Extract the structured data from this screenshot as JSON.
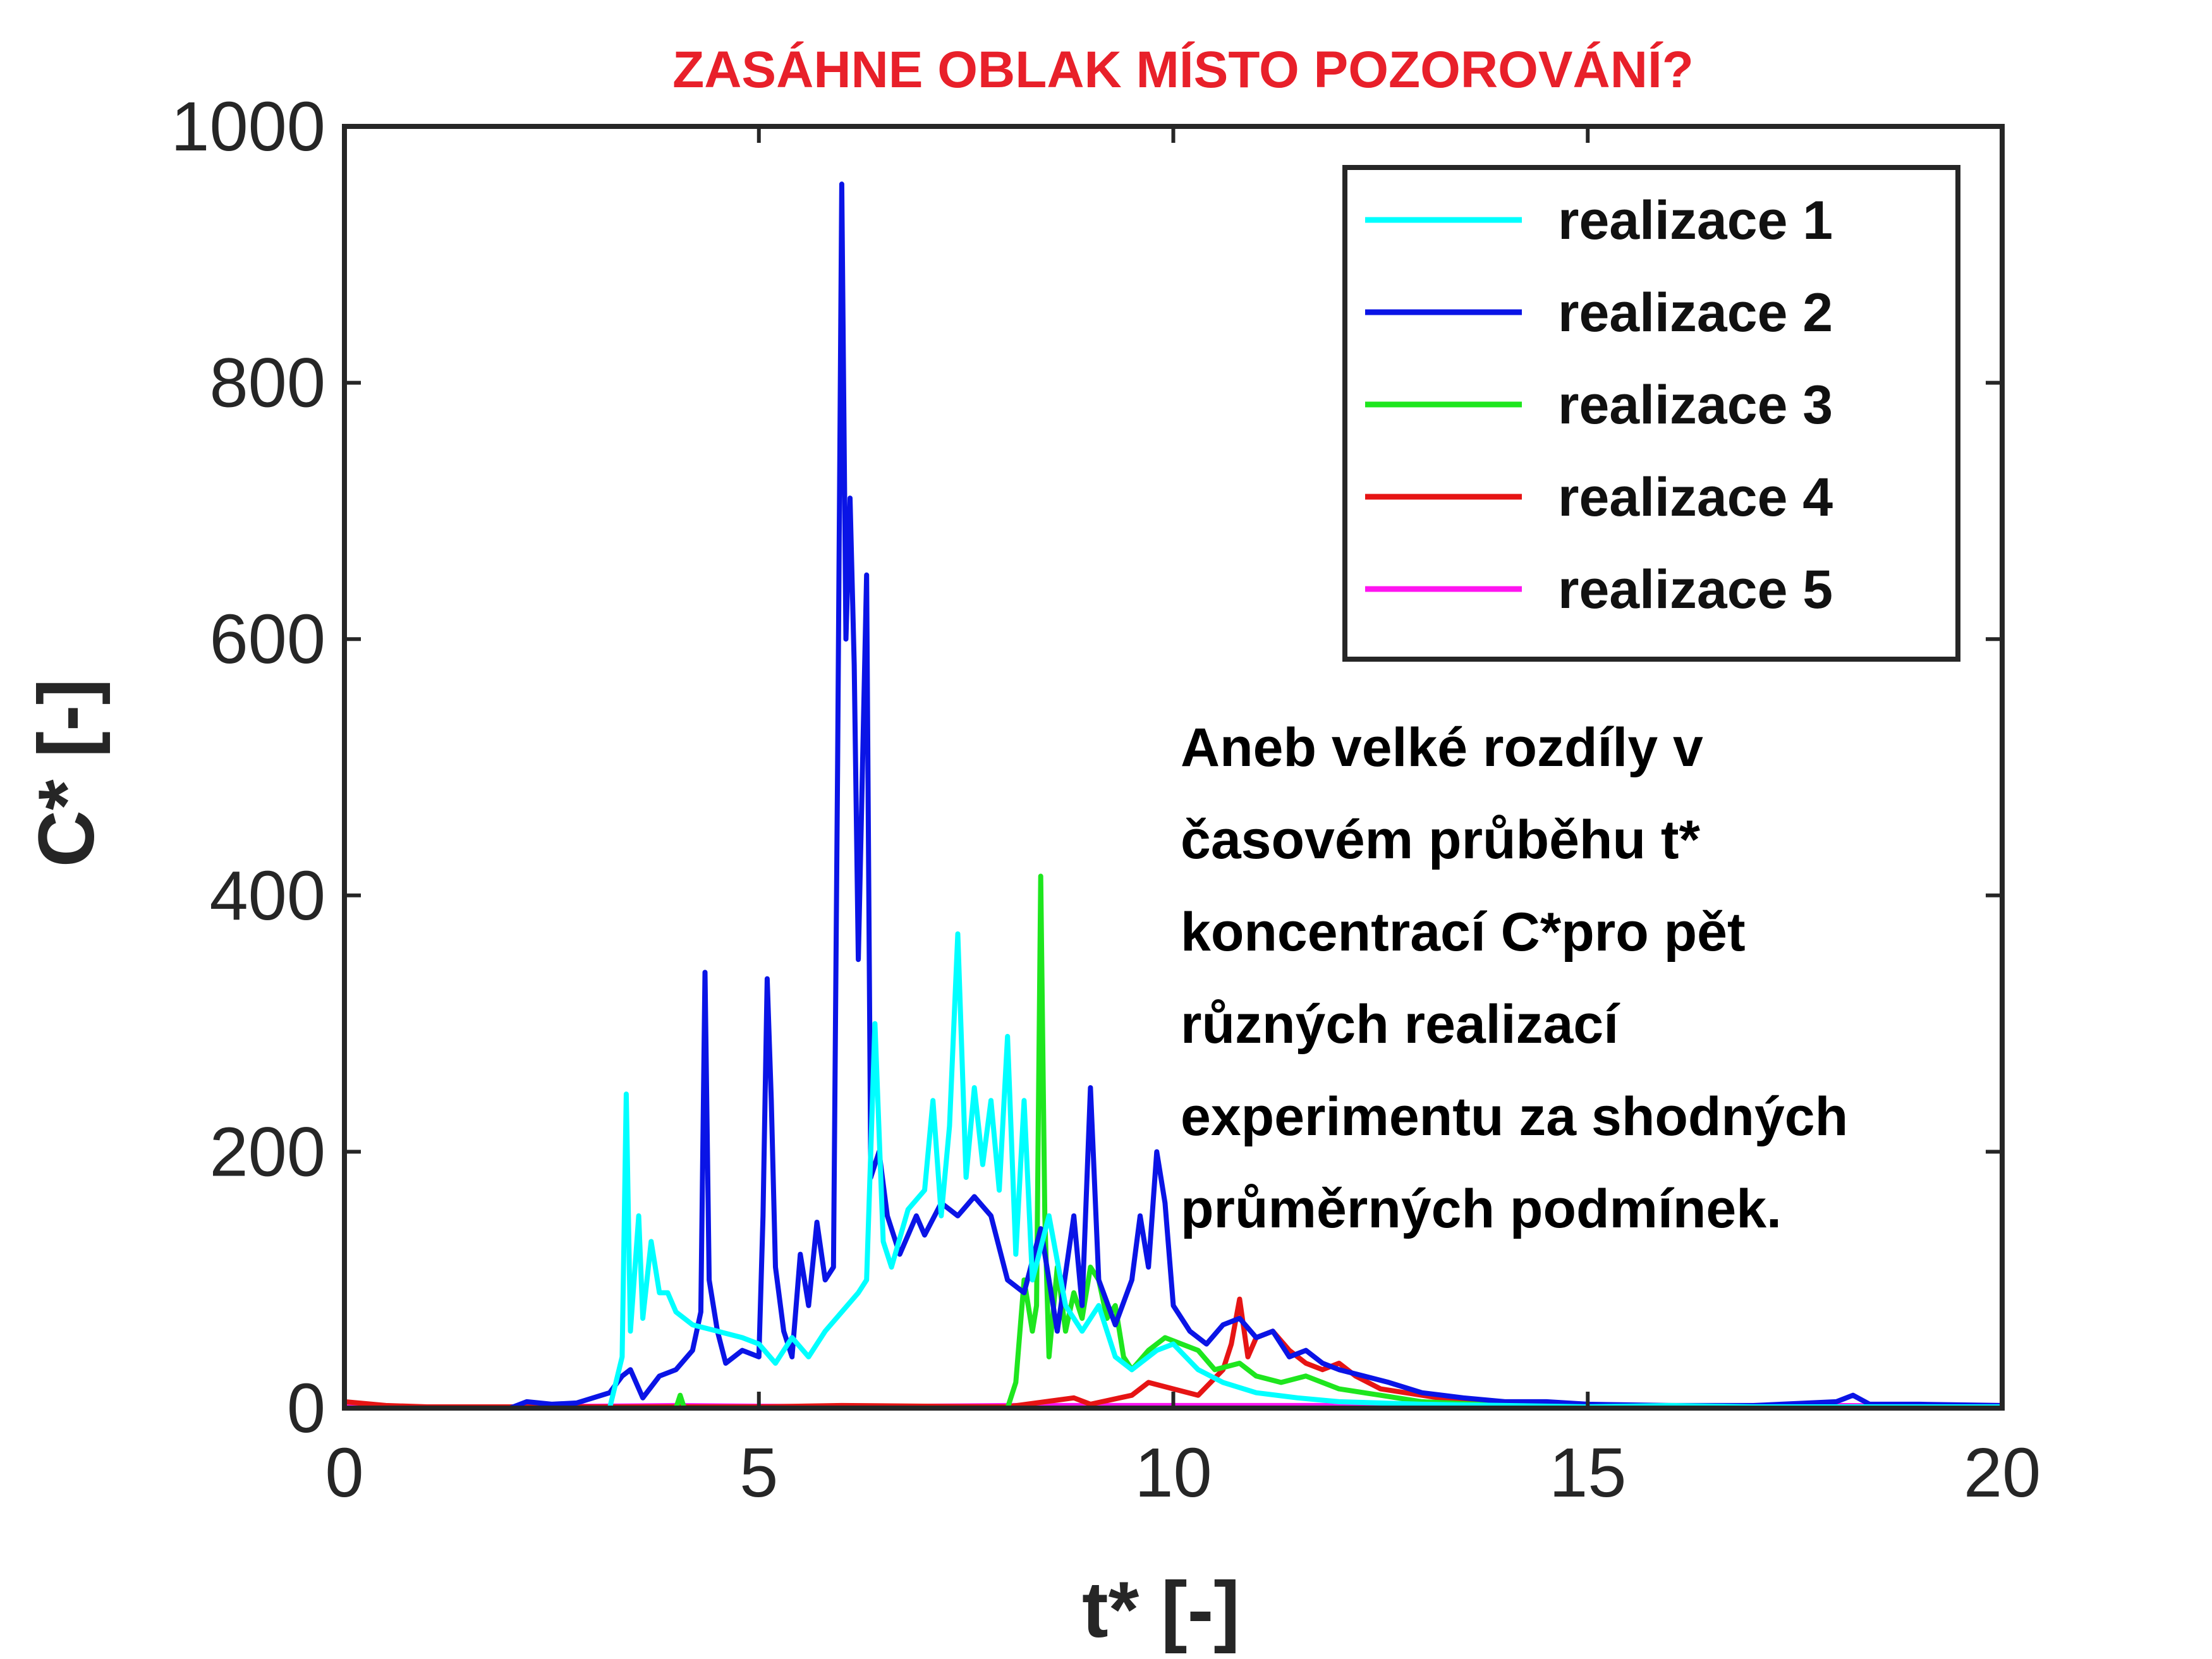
{
  "chart_data": {
    "type": "line",
    "title": "ZASÁHNE OBLAK MÍSTO POZOROVÁNÍ?",
    "title_color": "#e8202a",
    "xlabel": "t* [-]",
    "ylabel": "C* [-]",
    "xlim": [
      0,
      20
    ],
    "ylim": [
      0,
      1000
    ],
    "xticks": [
      0,
      5,
      10,
      15,
      20
    ],
    "yticks": [
      0,
      200,
      400,
      600,
      800,
      1000
    ],
    "grid": false,
    "legend_position": "top-right",
    "annotation": [
      "Aneb velké rozdíly v",
      "časovém průběhu t*",
      "koncentrací C*pro pět",
      "různých realizací",
      "experimentu za shodných",
      "průměrných podmínek."
    ],
    "series": [
      {
        "name": "realizace 1",
        "color": "#00ffff",
        "points": [
          [
            0,
            0
          ],
          [
            3.2,
            0
          ],
          [
            3.35,
            40
          ],
          [
            3.4,
            245
          ],
          [
            3.45,
            60
          ],
          [
            3.55,
            150
          ],
          [
            3.6,
            70
          ],
          [
            3.7,
            130
          ],
          [
            3.8,
            90
          ],
          [
            3.9,
            90
          ],
          [
            4.0,
            75
          ],
          [
            4.2,
            65
          ],
          [
            4.5,
            60
          ],
          [
            4.8,
            55
          ],
          [
            5.0,
            50
          ],
          [
            5.2,
            35
          ],
          [
            5.4,
            55
          ],
          [
            5.6,
            40
          ],
          [
            5.8,
            60
          ],
          [
            6.0,
            75
          ],
          [
            6.2,
            90
          ],
          [
            6.3,
            100
          ],
          [
            6.4,
            300
          ],
          [
            6.5,
            130
          ],
          [
            6.6,
            110
          ],
          [
            6.8,
            155
          ],
          [
            7.0,
            170
          ],
          [
            7.1,
            240
          ],
          [
            7.2,
            150
          ],
          [
            7.3,
            220
          ],
          [
            7.4,
            370
          ],
          [
            7.5,
            180
          ],
          [
            7.6,
            250
          ],
          [
            7.7,
            190
          ],
          [
            7.8,
            240
          ],
          [
            7.9,
            170
          ],
          [
            8.0,
            290
          ],
          [
            8.1,
            120
          ],
          [
            8.2,
            240
          ],
          [
            8.3,
            100
          ],
          [
            8.5,
            150
          ],
          [
            8.7,
            80
          ],
          [
            8.9,
            60
          ],
          [
            9.1,
            80
          ],
          [
            9.3,
            40
          ],
          [
            9.5,
            30
          ],
          [
            9.8,
            45
          ],
          [
            10.0,
            50
          ],
          [
            10.3,
            30
          ],
          [
            10.6,
            20
          ],
          [
            11.0,
            12
          ],
          [
            11.5,
            8
          ],
          [
            12.0,
            5
          ],
          [
            13.0,
            3
          ],
          [
            14.0,
            2
          ],
          [
            15.0,
            1
          ],
          [
            16.0,
            2
          ],
          [
            17.0,
            1
          ],
          [
            18.0,
            1
          ],
          [
            19.0,
            1
          ],
          [
            20.0,
            1
          ]
        ]
      },
      {
        "name": "realizace 2",
        "color": "#0a14e6",
        "points": [
          [
            0,
            0
          ],
          [
            2.0,
            0
          ],
          [
            2.2,
            5
          ],
          [
            2.5,
            3
          ],
          [
            2.8,
            4
          ],
          [
            3.2,
            12
          ],
          [
            3.35,
            25
          ],
          [
            3.45,
            30
          ],
          [
            3.6,
            8
          ],
          [
            3.8,
            25
          ],
          [
            4.0,
            30
          ],
          [
            4.2,
            45
          ],
          [
            4.3,
            75
          ],
          [
            4.35,
            340
          ],
          [
            4.4,
            100
          ],
          [
            4.5,
            60
          ],
          [
            4.6,
            35
          ],
          [
            4.8,
            45
          ],
          [
            5.0,
            40
          ],
          [
            5.05,
            150
          ],
          [
            5.1,
            335
          ],
          [
            5.15,
            240
          ],
          [
            5.2,
            110
          ],
          [
            5.3,
            60
          ],
          [
            5.4,
            40
          ],
          [
            5.5,
            120
          ],
          [
            5.6,
            80
          ],
          [
            5.7,
            145
          ],
          [
            5.8,
            100
          ],
          [
            5.9,
            110
          ],
          [
            5.95,
            500
          ],
          [
            6.0,
            955
          ],
          [
            6.05,
            600
          ],
          [
            6.1,
            710
          ],
          [
            6.15,
            580
          ],
          [
            6.2,
            350
          ],
          [
            6.25,
            500
          ],
          [
            6.3,
            650
          ],
          [
            6.35,
            180
          ],
          [
            6.45,
            200
          ],
          [
            6.55,
            150
          ],
          [
            6.7,
            120
          ],
          [
            6.9,
            150
          ],
          [
            7.0,
            135
          ],
          [
            7.2,
            160
          ],
          [
            7.4,
            150
          ],
          [
            7.6,
            165
          ],
          [
            7.8,
            150
          ],
          [
            8.0,
            100
          ],
          [
            8.2,
            90
          ],
          [
            8.4,
            140
          ],
          [
            8.6,
            60
          ],
          [
            8.8,
            150
          ],
          [
            8.9,
            80
          ],
          [
            9.0,
            250
          ],
          [
            9.1,
            100
          ],
          [
            9.3,
            65
          ],
          [
            9.5,
            100
          ],
          [
            9.6,
            150
          ],
          [
            9.7,
            110
          ],
          [
            9.8,
            200
          ],
          [
            9.9,
            160
          ],
          [
            10.0,
            80
          ],
          [
            10.2,
            60
          ],
          [
            10.4,
            50
          ],
          [
            10.6,
            65
          ],
          [
            10.8,
            70
          ],
          [
            11.0,
            55
          ],
          [
            11.2,
            60
          ],
          [
            11.4,
            40
          ],
          [
            11.6,
            45
          ],
          [
            11.8,
            35
          ],
          [
            12.0,
            30
          ],
          [
            12.3,
            25
          ],
          [
            12.6,
            20
          ],
          [
            13.0,
            12
          ],
          [
            13.5,
            8
          ],
          [
            14.0,
            5
          ],
          [
            14.5,
            5
          ],
          [
            15.0,
            3
          ],
          [
            16.0,
            2
          ],
          [
            17.0,
            2
          ],
          [
            18.0,
            5
          ],
          [
            18.2,
            10
          ],
          [
            18.4,
            3
          ],
          [
            19.0,
            3
          ],
          [
            20.0,
            2
          ]
        ]
      },
      {
        "name": "realizace 3",
        "color": "#1ee61e",
        "points": [
          [
            0,
            0
          ],
          [
            4.0,
            0
          ],
          [
            4.05,
            10
          ],
          [
            4.1,
            0
          ],
          [
            8.0,
            0
          ],
          [
            8.1,
            20
          ],
          [
            8.2,
            100
          ],
          [
            8.3,
            60
          ],
          [
            8.35,
            80
          ],
          [
            8.4,
            415
          ],
          [
            8.45,
            150
          ],
          [
            8.5,
            40
          ],
          [
            8.6,
            110
          ],
          [
            8.7,
            60
          ],
          [
            8.8,
            90
          ],
          [
            8.9,
            70
          ],
          [
            9.0,
            110
          ],
          [
            9.1,
            100
          ],
          [
            9.2,
            70
          ],
          [
            9.3,
            80
          ],
          [
            9.4,
            40
          ],
          [
            9.5,
            30
          ],
          [
            9.7,
            45
          ],
          [
            9.9,
            55
          ],
          [
            10.1,
            50
          ],
          [
            10.3,
            45
          ],
          [
            10.5,
            30
          ],
          [
            10.8,
            35
          ],
          [
            11.0,
            25
          ],
          [
            11.3,
            20
          ],
          [
            11.6,
            25
          ],
          [
            12.0,
            15
          ],
          [
            12.5,
            10
          ],
          [
            13.0,
            5
          ],
          [
            14.0,
            2
          ],
          [
            15.0,
            1
          ],
          [
            20.0,
            1
          ]
        ]
      },
      {
        "name": "realizace 4",
        "color": "#e61414",
        "points": [
          [
            0,
            5
          ],
          [
            0.5,
            2
          ],
          [
            1.0,
            1
          ],
          [
            3.0,
            1
          ],
          [
            5.0,
            1
          ],
          [
            6.0,
            2
          ],
          [
            8.0,
            1
          ],
          [
            8.8,
            8
          ],
          [
            9.0,
            3
          ],
          [
            9.5,
            10
          ],
          [
            9.7,
            20
          ],
          [
            10.0,
            15
          ],
          [
            10.3,
            10
          ],
          [
            10.6,
            30
          ],
          [
            10.7,
            50
          ],
          [
            10.8,
            85
          ],
          [
            10.9,
            40
          ],
          [
            11.0,
            55
          ],
          [
            11.2,
            60
          ],
          [
            11.4,
            45
          ],
          [
            11.6,
            35
          ],
          [
            11.8,
            30
          ],
          [
            12.0,
            35
          ],
          [
            12.2,
            25
          ],
          [
            12.5,
            15
          ],
          [
            13.0,
            10
          ],
          [
            13.5,
            5
          ],
          [
            14.0,
            3
          ],
          [
            15.0,
            2
          ],
          [
            16.0,
            1
          ],
          [
            20.0,
            1
          ]
        ]
      },
      {
        "name": "realizace 5",
        "color": "#ff14f0",
        "points": [
          [
            0,
            1
          ],
          [
            2.0,
            1
          ],
          [
            4.0,
            2
          ],
          [
            6.0,
            1
          ],
          [
            8.0,
            2
          ],
          [
            10.0,
            2
          ],
          [
            12.0,
            2
          ],
          [
            14.0,
            1
          ],
          [
            16.0,
            1
          ],
          [
            18.0,
            2
          ],
          [
            20.0,
            1
          ]
        ]
      }
    ]
  }
}
